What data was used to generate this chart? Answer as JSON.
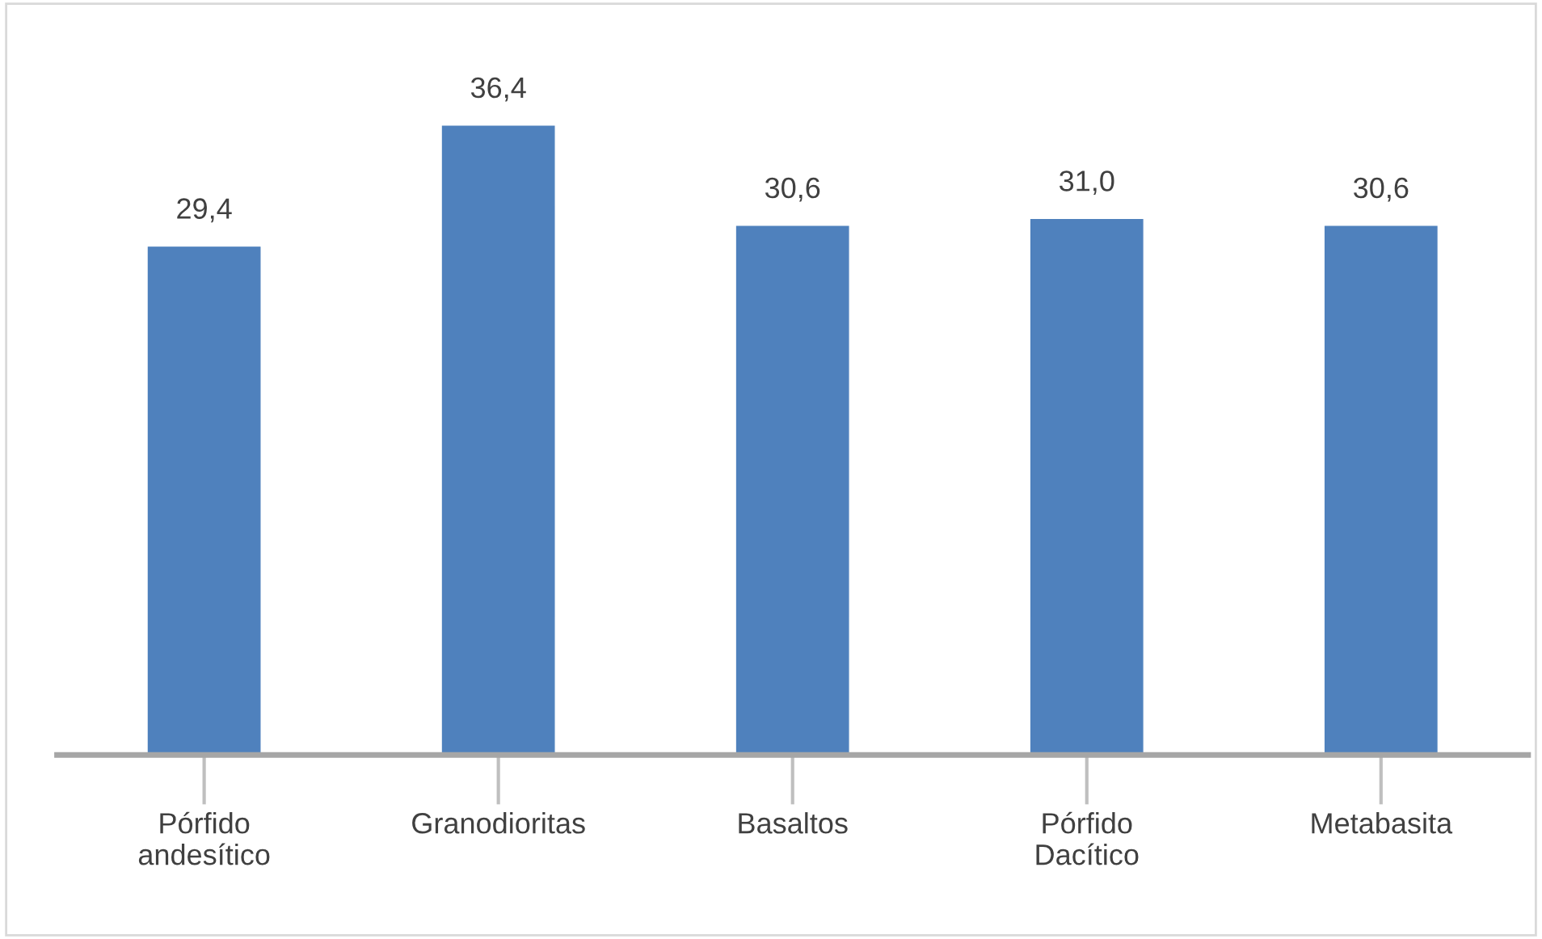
{
  "chart_data": {
    "type": "bar",
    "categories": [
      "Pórfido\nandesítico",
      "Granodioritas",
      "Basaltos",
      "Pórfido\nDacítico",
      "Metabasita"
    ],
    "values": [
      29.4,
      36.4,
      30.6,
      31.0,
      30.6
    ],
    "value_labels": [
      "29,4",
      "36,4",
      "30,6",
      "31,0",
      "30,6"
    ],
    "color": "#4f81bd",
    "grid": false,
    "legend": false
  }
}
